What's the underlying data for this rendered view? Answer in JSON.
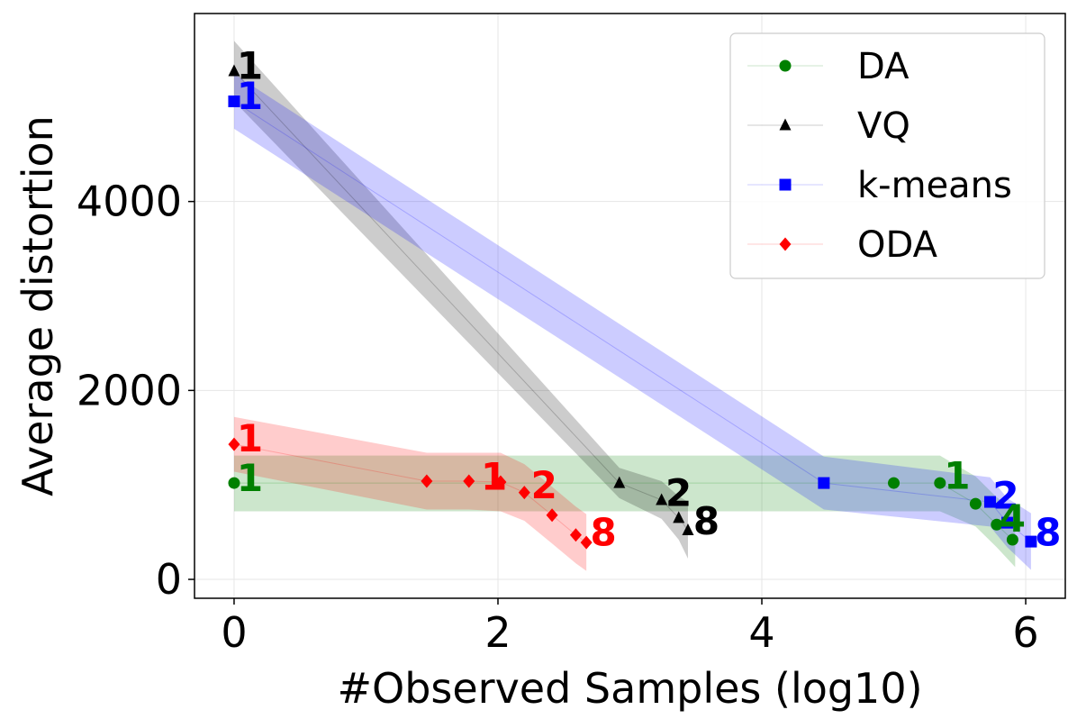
{
  "chart_data": {
    "type": "scatter",
    "title": "",
    "xlabel": "#Observed Samples (log10)",
    "ylabel": "Average distortion",
    "xlim": [
      -0.3,
      6.3
    ],
    "ylim": [
      -200,
      5990
    ],
    "xticks": [
      0,
      2,
      4,
      6
    ],
    "yticks": [
      0,
      2000,
      4000
    ],
    "xtick_labels": [
      "0",
      "2",
      "4",
      "6"
    ],
    "ytick_labels": [
      "0",
      "2000",
      "4000"
    ],
    "grid": true,
    "legend_position": "top-right",
    "series": [
      {
        "name": "DA",
        "color": "#008000",
        "marker": "circle",
        "points": [
          [
            0,
            1020
          ],
          [
            5.0,
            1020
          ],
          [
            5.35,
            1020
          ],
          [
            5.62,
            800
          ],
          [
            5.78,
            580
          ],
          [
            5.9,
            420
          ]
        ],
        "band": [
          [
            0,
            720,
            1310
          ],
          [
            5.35,
            720,
            1310
          ],
          [
            5.62,
            560,
            1090
          ],
          [
            5.78,
            340,
            870
          ],
          [
            5.92,
            130,
            720
          ]
        ]
      },
      {
        "name": "VQ",
        "color": "#000000",
        "marker": "triangle",
        "points": [
          [
            0,
            5380
          ],
          [
            2.92,
            1020
          ],
          [
            3.24,
            840
          ],
          [
            3.37,
            650
          ],
          [
            3.44,
            520
          ]
        ],
        "band": [
          [
            0,
            5060,
            5700
          ],
          [
            2.92,
            860,
            1180
          ],
          [
            3.24,
            640,
            1040
          ],
          [
            3.37,
            420,
            880
          ],
          [
            3.44,
            220,
            820
          ]
        ]
      },
      {
        "name": "k-means",
        "color": "#0000ff",
        "marker": "square",
        "points": [
          [
            0,
            5060
          ],
          [
            4.47,
            1020
          ],
          [
            5.73,
            820
          ],
          [
            5.86,
            600
          ],
          [
            6.04,
            400
          ]
        ],
        "band": [
          [
            0,
            4770,
            5350
          ],
          [
            4.47,
            740,
            1300
          ],
          [
            5.73,
            560,
            1080
          ],
          [
            5.86,
            340,
            860
          ],
          [
            6.04,
            100,
            700
          ]
        ]
      },
      {
        "name": "ODA",
        "color": "#ff0000",
        "marker": "diamond",
        "points": [
          [
            0,
            1430
          ],
          [
            1.46,
            1040
          ],
          [
            1.78,
            1040
          ],
          [
            2.02,
            1030
          ],
          [
            2.2,
            920
          ],
          [
            2.41,
            680
          ],
          [
            2.59,
            470
          ],
          [
            2.67,
            390
          ]
        ],
        "band": [
          [
            0,
            1140,
            1720
          ],
          [
            1.46,
            740,
            1340
          ],
          [
            1.78,
            740,
            1340
          ],
          [
            2.02,
            720,
            1340
          ],
          [
            2.2,
            620,
            1220
          ],
          [
            2.41,
            380,
            980
          ],
          [
            2.59,
            170,
            770
          ],
          [
            2.67,
            90,
            690
          ]
        ]
      }
    ],
    "annotations": [
      {
        "text": "1",
        "x": 0.02,
        "y": 5440,
        "color": "#000000"
      },
      {
        "text": "1",
        "x": 0.02,
        "y": 5120,
        "color": "#0000ff"
      },
      {
        "text": "1",
        "x": 0.02,
        "y": 1500,
        "color": "#ff0000"
      },
      {
        "text": "1",
        "x": 0.02,
        "y": 1080,
        "color": "#008000"
      },
      {
        "text": "1",
        "x": 1.87,
        "y": 1090,
        "color": "#ff0000"
      },
      {
        "text": "2",
        "x": 2.25,
        "y": 1000,
        "color": "#ff0000"
      },
      {
        "text": "8",
        "x": 2.7,
        "y": 500,
        "color": "#ff0000"
      },
      {
        "text": "2",
        "x": 3.27,
        "y": 920,
        "color": "#000000"
      },
      {
        "text": "8",
        "x": 3.48,
        "y": 620,
        "color": "#000000"
      },
      {
        "text": "1",
        "x": 5.38,
        "y": 1100,
        "color": "#008000"
      },
      {
        "text": "2",
        "x": 5.75,
        "y": 890,
        "color": "#0000ff"
      },
      {
        "text": "4",
        "x": 5.8,
        "y": 650,
        "color": "#008000"
      },
      {
        "text": "8",
        "x": 6.07,
        "y": 500,
        "color": "#0000ff"
      }
    ]
  }
}
